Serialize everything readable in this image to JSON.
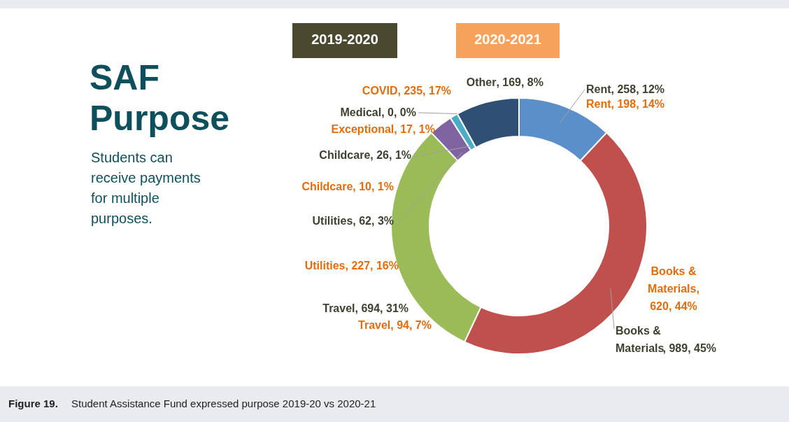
{
  "chart_data": {
    "type": "donut",
    "title": "SAF Purpose",
    "subtitle": "Students can receive payments for multiple purposes.",
    "categories": [
      "Rent",
      "Books & Materials",
      "Travel",
      "Utilities",
      "Childcare",
      "Medical",
      "Other"
    ],
    "values": [
      12,
      45,
      31,
      3,
      1,
      0,
      8
    ],
    "colors": [
      "#5b8fc9",
      "#c0504d",
      "#9bbb59",
      "#8064a2",
      "#4bacc6",
      "#f79646",
      "#2f4f75"
    ],
    "value_labels": [
      ", 258, 12%",
      ", 989, 45%",
      ", 694, 31%",
      ", 62, 3%",
      ", 26, 1%",
      ", 0, 0%",
      ", 169, 8%"
    ],
    "annotations": [
      "2019-2020",
      "2020-2021",
      "COVID, 235, 17%",
      "Exceptional, 17, 1%",
      "Childcare, 10, 1%",
      "Utilities, 227, 16%",
      "Travel, 94, 7%",
      "Rent, 198, 14%",
      "Books & Materials, 620, 44%",
      "Figure 19. Student Assistance Fund expressed purpose 2019-20 vs 2020-21"
    ]
  }
}
